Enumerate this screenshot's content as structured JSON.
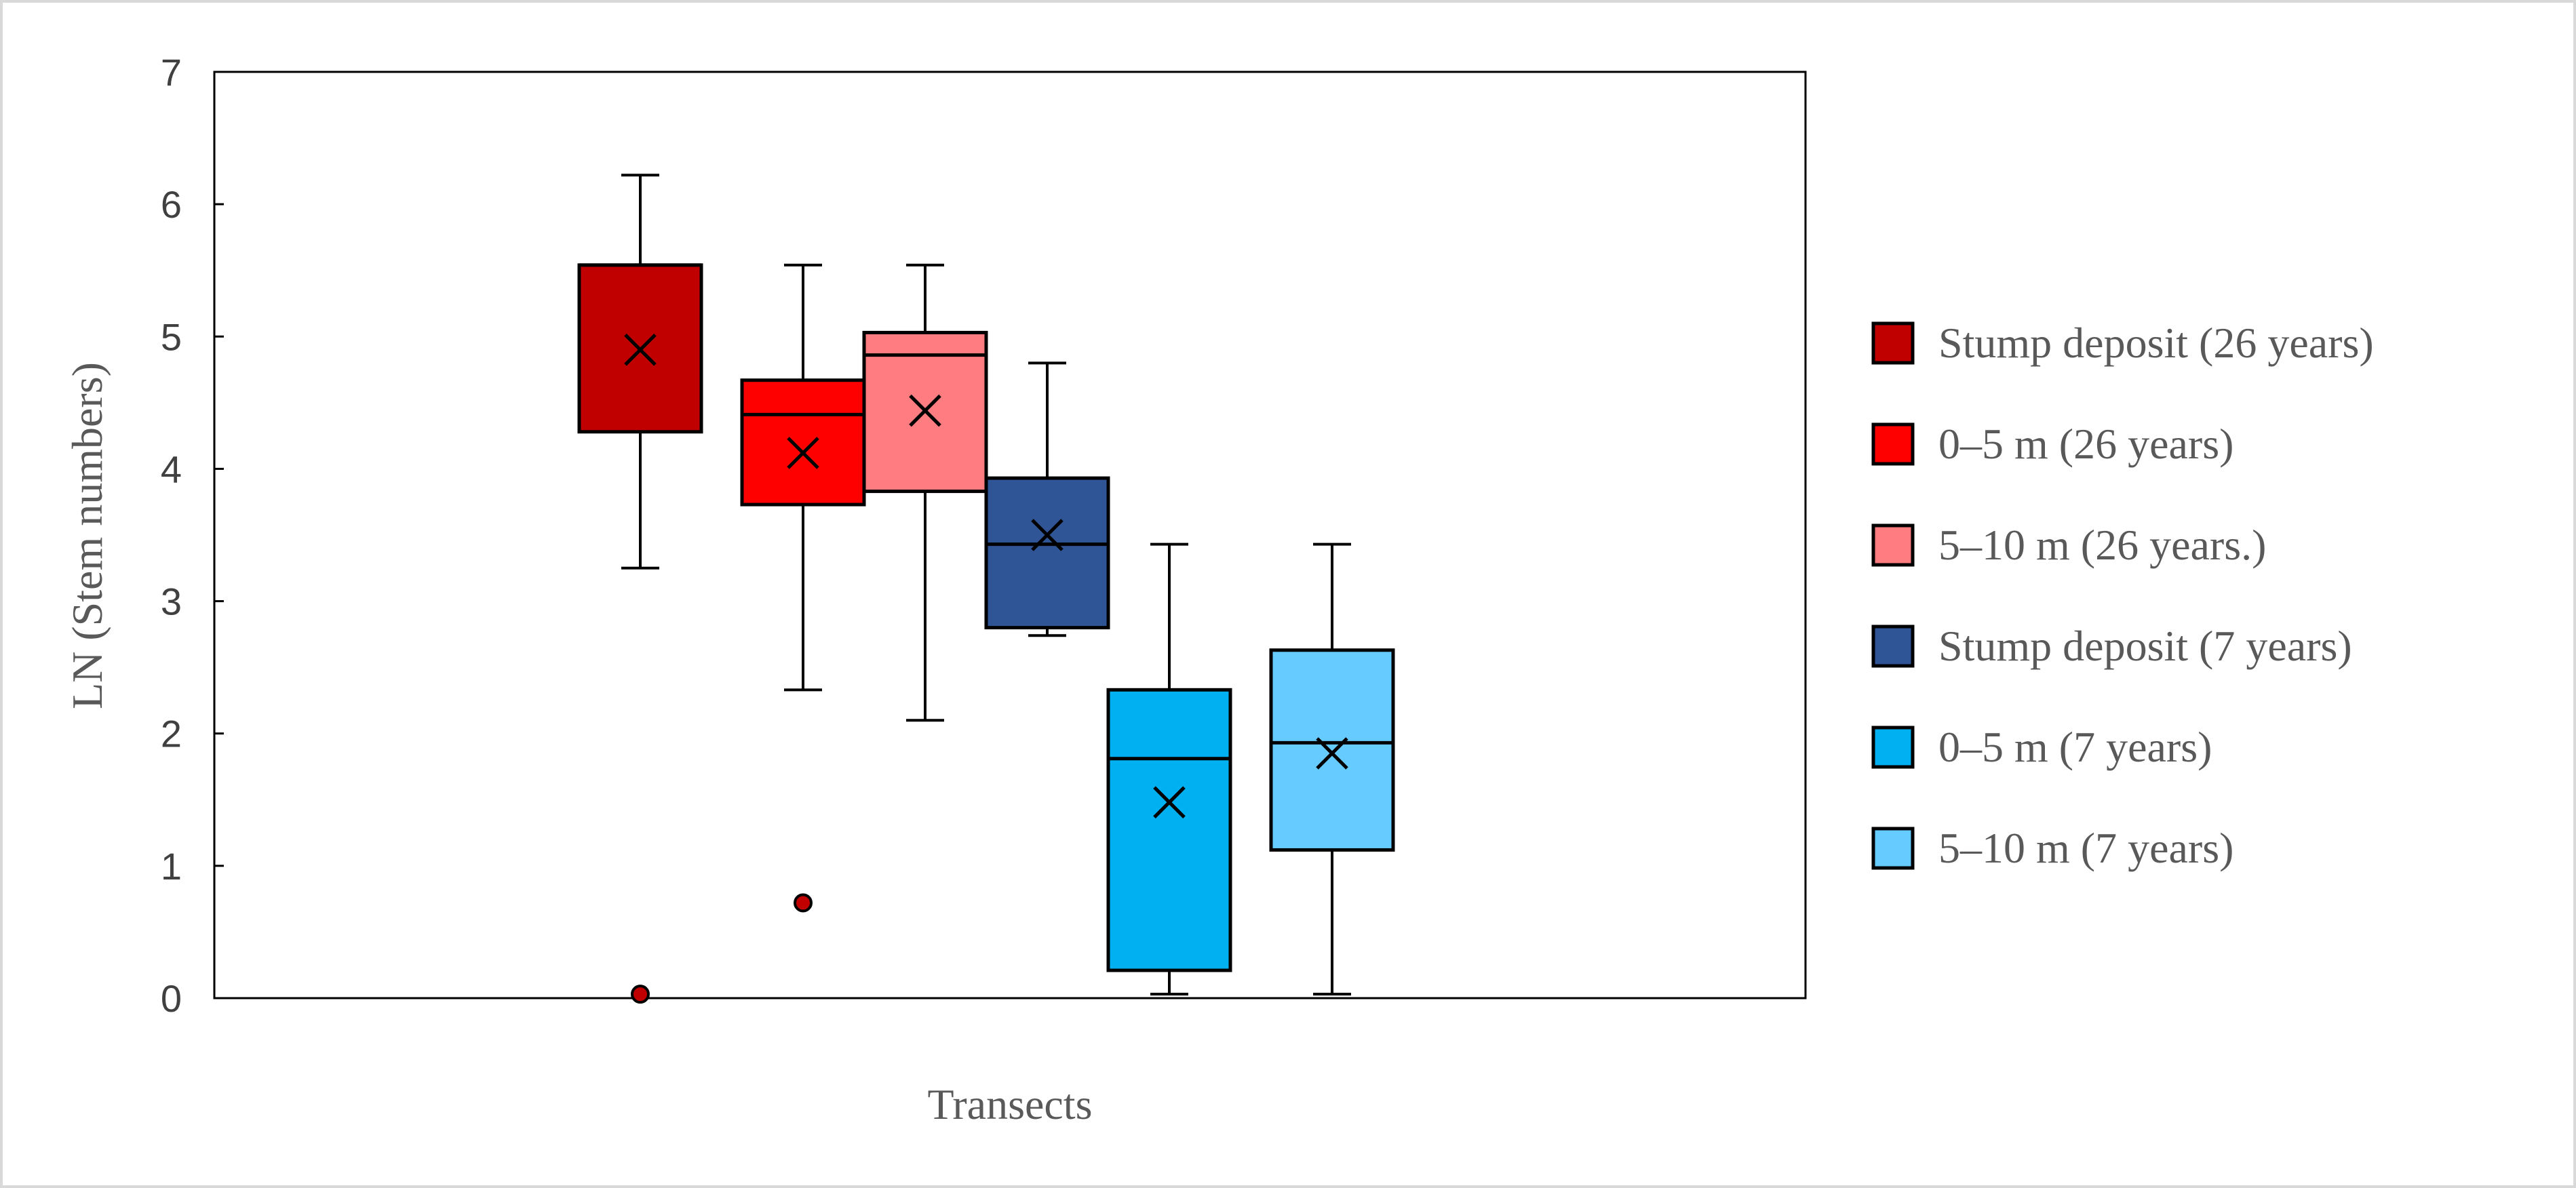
{
  "chart_data": {
    "type": "box",
    "xlabel": "Transects",
    "ylabel": "LN (Stem numbers)",
    "ylim": [
      0,
      7
    ],
    "yticks": [
      0,
      1,
      2,
      3,
      4,
      5,
      6,
      7
    ],
    "grid": false,
    "legend_position": "right",
    "series": [
      {
        "name": "Stump deposit (26 years)",
        "color": "#C00000",
        "whisker_low": 3.25,
        "q1": 4.28,
        "median": 5.54,
        "q3": 5.54,
        "whisker_high": 6.22,
        "mean": 4.9,
        "outliers": [
          0.03
        ],
        "outlier_color": "#C00000"
      },
      {
        "name": "0–5 m (26 years)",
        "color": "#FF0000",
        "whisker_low": 2.33,
        "q1": 3.73,
        "median": 4.41,
        "q3": 4.67,
        "whisker_high": 5.54,
        "mean": 4.12,
        "outliers": [
          0.72
        ],
        "outlier_color": "#C00000"
      },
      {
        "name": "5–10 m (26 years.)",
        "color": "#FF7C80",
        "whisker_low": 2.1,
        "q1": 3.83,
        "median": 4.86,
        "q3": 5.03,
        "whisker_high": 5.54,
        "mean": 4.44,
        "outliers": [],
        "outlier_color": "#C00000"
      },
      {
        "name": "Stump deposit (7 years)",
        "color": "#2F5597",
        "whisker_low": 2.74,
        "q1": 2.8,
        "median": 3.43,
        "q3": 3.93,
        "whisker_high": 4.8,
        "mean": 3.5,
        "outliers": [],
        "outlier_color": "#C00000"
      },
      {
        "name": "0–5 m (7 years)",
        "color": "#00B0F0",
        "whisker_low": 0.03,
        "q1": 0.21,
        "median": 1.81,
        "q3": 2.33,
        "whisker_high": 3.43,
        "mean": 1.48,
        "outliers": [],
        "outlier_color": "#C00000"
      },
      {
        "name": "5–10 m (7 years)",
        "color": "#66CCFF",
        "whisker_low": 0.03,
        "q1": 1.12,
        "median": 1.93,
        "q3": 2.63,
        "whisker_high": 3.43,
        "mean": 1.85,
        "outliers": [],
        "outlier_color": "#C00000"
      }
    ]
  }
}
